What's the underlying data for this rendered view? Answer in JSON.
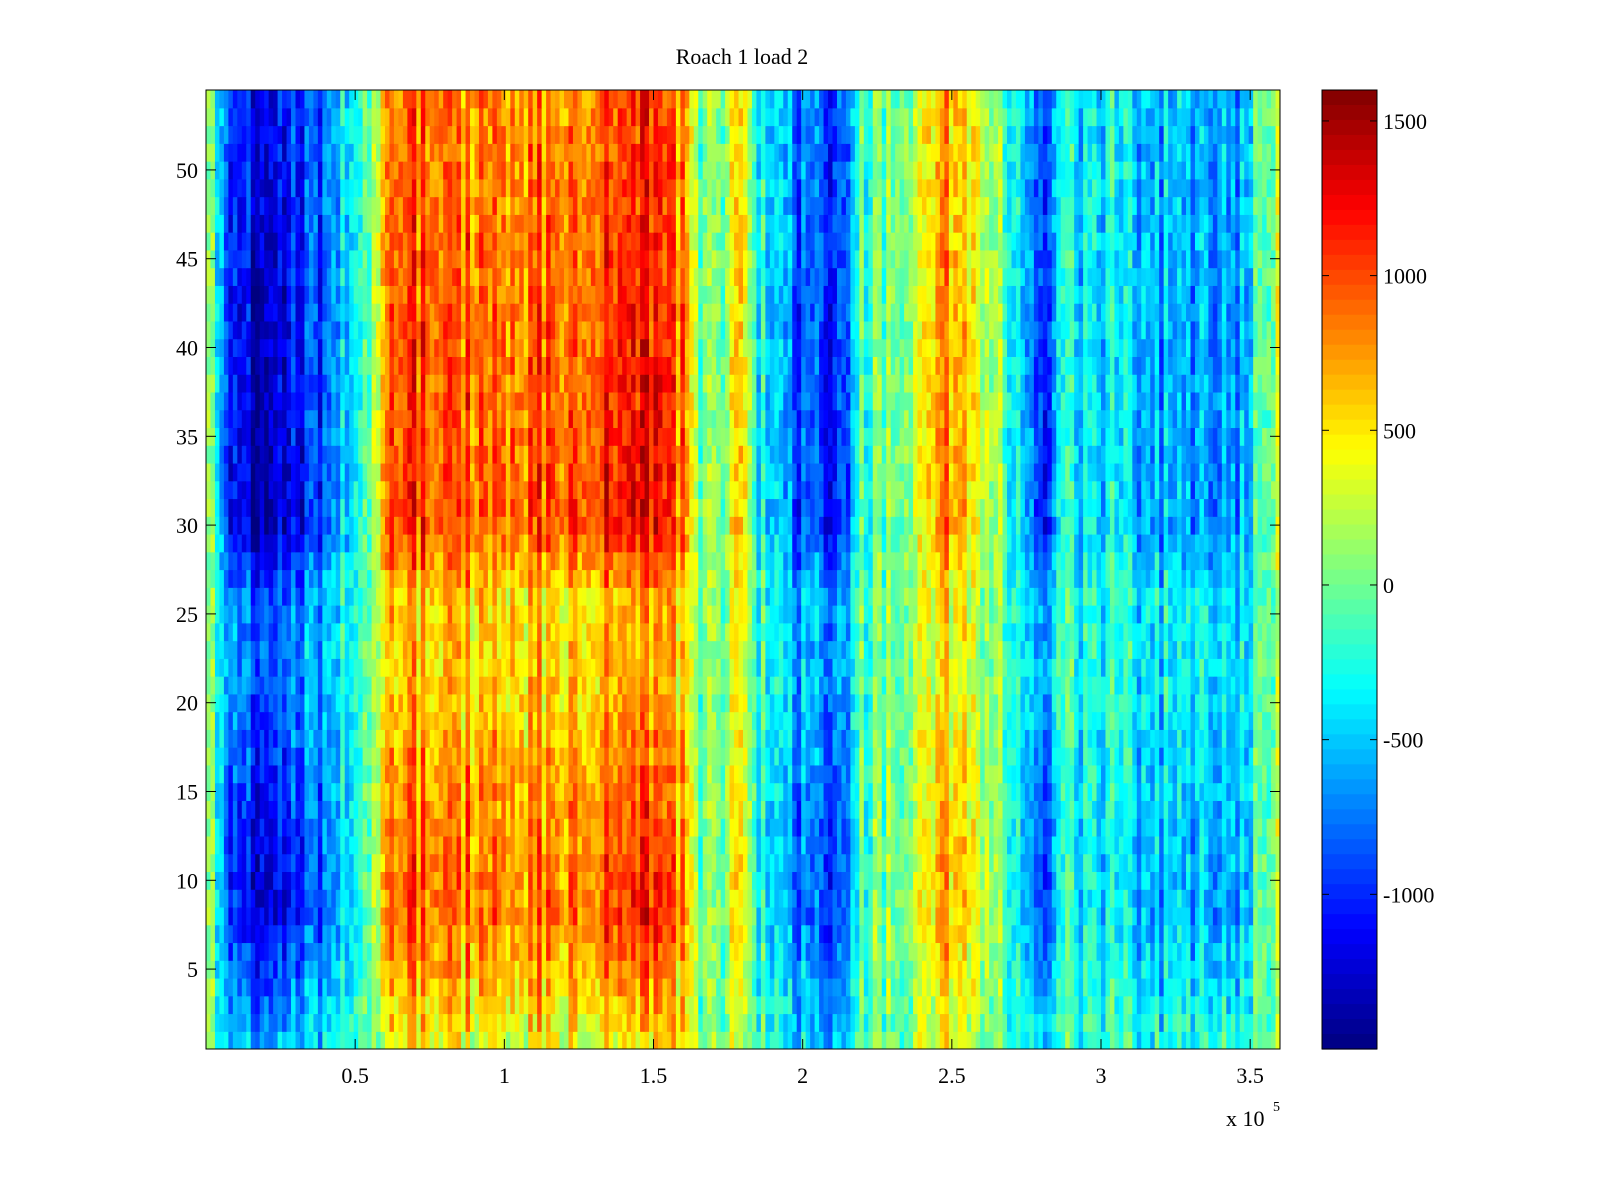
{
  "chart_data": {
    "type": "heatmap",
    "title": "Roach 1 load 2",
    "xlabel": "",
    "ylabel": "",
    "x_multiplier_label": {
      "base": "x 10",
      "exponent": "5"
    },
    "xlim": [
      0.0,
      3.6
    ],
    "ylim": [
      0.5,
      54.5
    ],
    "x_ticks": [
      {
        "value": 0.5,
        "label": "0.5"
      },
      {
        "value": 1.0,
        "label": "1"
      },
      {
        "value": 1.5,
        "label": "1.5"
      },
      {
        "value": 2.0,
        "label": "2"
      },
      {
        "value": 2.5,
        "label": "2.5"
      },
      {
        "value": 3.0,
        "label": "3"
      },
      {
        "value": 3.5,
        "label": "3.5"
      }
    ],
    "y_ticks": [
      {
        "value": 5,
        "label": "5"
      },
      {
        "value": 10,
        "label": "10"
      },
      {
        "value": 15,
        "label": "15"
      },
      {
        "value": 20,
        "label": "20"
      },
      {
        "value": 25,
        "label": "25"
      },
      {
        "value": 30,
        "label": "30"
      },
      {
        "value": 35,
        "label": "35"
      },
      {
        "value": 40,
        "label": "40"
      },
      {
        "value": 45,
        "label": "45"
      },
      {
        "value": 50,
        "label": "50"
      }
    ],
    "colorbar": {
      "colormap": "jet",
      "range": [
        -1500,
        1600
      ],
      "ticks": [
        {
          "value": 1500,
          "label": "1500"
        },
        {
          "value": 1000,
          "label": "1000"
        },
        {
          "value": 500,
          "label": "500"
        },
        {
          "value": 0,
          "label": "0"
        },
        {
          "value": -500,
          "label": "-500"
        },
        {
          "value": -1000,
          "label": "-1000"
        }
      ]
    },
    "rows": 54,
    "column_profile": {
      "description": "approximate mean value per x position (x in units of 10^5)",
      "x": [
        0.0,
        0.05,
        0.1,
        0.2,
        0.3,
        0.4,
        0.5,
        0.55,
        0.6,
        0.65,
        0.8,
        1.0,
        1.2,
        1.4,
        1.5,
        1.6,
        1.63,
        1.7,
        1.75,
        1.8,
        1.85,
        1.95,
        2.0,
        2.05,
        2.1,
        2.15,
        2.2,
        2.3,
        2.4,
        2.45,
        2.55,
        2.65,
        2.75,
        2.8,
        2.82,
        2.85,
        3.0,
        3.2,
        3.4,
        3.5,
        3.6
      ],
      "values": [
        200,
        -500,
        -1150,
        -1200,
        -1050,
        -800,
        -300,
        0,
        800,
        1000,
        900,
        850,
        950,
        1150,
        1150,
        800,
        200,
        -100,
        200,
        600,
        -300,
        -500,
        -900,
        -600,
        -1050,
        -700,
        -200,
        100,
        200,
        800,
        600,
        150,
        -500,
        -800,
        -1100,
        -400,
        -350,
        -550,
        -750,
        -400,
        400
      ]
    },
    "row_modulation": {
      "description": "approximate multiplier of the column profile by row (y)",
      "y": [
        1,
        8,
        14,
        22,
        26,
        30,
        40,
        54
      ],
      "factor": [
        0.5,
        1.0,
        0.9,
        0.65,
        0.7,
        1.1,
        1.05,
        0.95
      ]
    }
  },
  "colors": {
    "frame": "#000000",
    "background": "#ffffff"
  }
}
